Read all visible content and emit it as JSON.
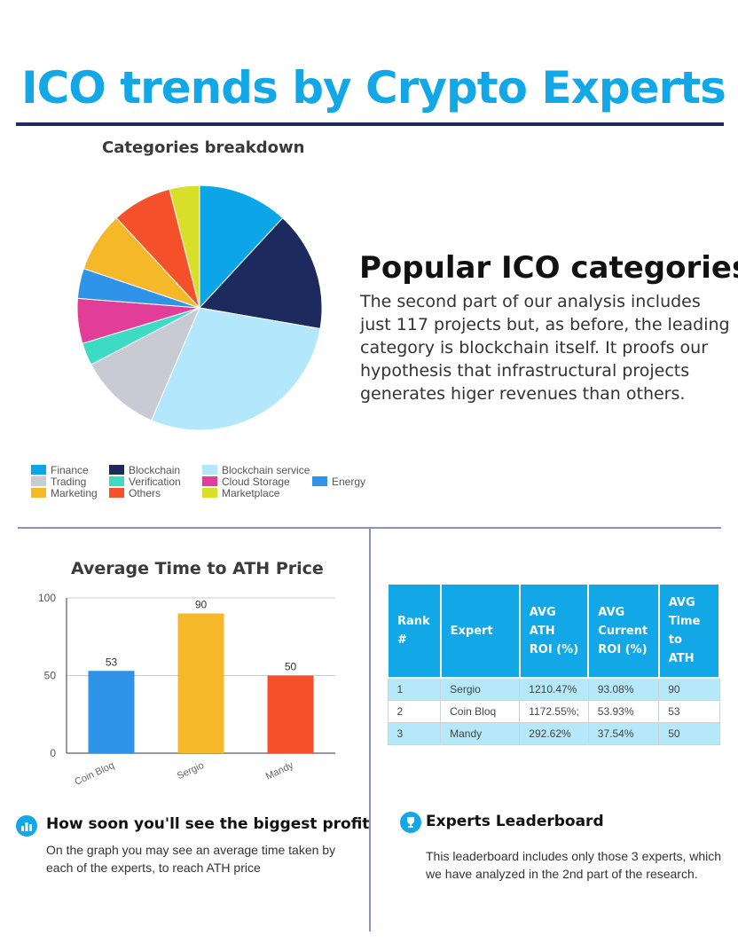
{
  "page": {
    "title": "ICO trends by Crypto Experts"
  },
  "categories_section": {
    "heading": "Popular ICO categories",
    "text": "The second part of our analysis includes just 117 projects but, as before, the leading category is blockchain itself. It proofs our hypothesis that infrastructural projects generates higer revenues than others."
  },
  "profit_section": {
    "icon": "bar-chart-icon",
    "heading": "How soon you'll see the biggest profit",
    "text": "On the graph you may see an average time taken by each of the experts, to reach ATH price"
  },
  "leaderboard_section": {
    "icon": "trophy-icon",
    "heading": "Experts Leaderboard",
    "text": "This leaderboard includes only those 3 experts, which we have analyzed in the 2nd part of the research."
  },
  "chart_data": [
    {
      "type": "pie",
      "title": "Categories breakdown",
      "legend_position": "bottom",
      "slices": [
        {
          "label": "Finance",
          "value": 12,
          "color": "#0ca5e8"
        },
        {
          "label": "Blockchain",
          "value": 16,
          "color": "#1c2a5e"
        },
        {
          "label": "Blockchain service",
          "value": 29,
          "color": "#b3e7fb"
        },
        {
          "label": "Trading",
          "value": 11,
          "color": "#c8cbd3"
        },
        {
          "label": "Verification",
          "value": 3,
          "color": "#3ddbc4"
        },
        {
          "label": "Cloud Storage",
          "value": 6,
          "color": "#e23d99"
        },
        {
          "label": "Energy",
          "value": 4,
          "color": "#2f93e8"
        },
        {
          "label": "Marketing",
          "value": 8,
          "color": "#f4b829"
        },
        {
          "label": "Others",
          "value": 8,
          "color": "#f4502a"
        },
        {
          "label": "Marketplace",
          "value": 4,
          "color": "#d8df2a"
        }
      ]
    },
    {
      "type": "bar",
      "title": "Average Time to ATH Price",
      "categories": [
        "Coin Bloq",
        "Sergio",
        "Mandy"
      ],
      "values": [
        53,
        90,
        50
      ],
      "colors": [
        "#2f93e8",
        "#f4b829",
        "#f4502a"
      ],
      "data_labels": [
        "53",
        "90",
        "50"
      ],
      "yticks": [
        0,
        50,
        100
      ],
      "ylim": [
        0,
        100
      ],
      "grid": true
    },
    {
      "type": "table",
      "headers": [
        "Rank #",
        "Expert",
        "AVG ATH ROI (%)",
        "AVG Current ROI (%)",
        "AVG Time to ATH"
      ],
      "rows": [
        [
          "1",
          "Sergio",
          "1210.47%",
          "93.08%",
          "90"
        ],
        [
          "2",
          "Coin Bloq",
          "1172.55%;",
          "53.93%",
          "53"
        ],
        [
          "3",
          "Mandy",
          "292.62%",
          "37.54%",
          "50"
        ]
      ]
    }
  ]
}
